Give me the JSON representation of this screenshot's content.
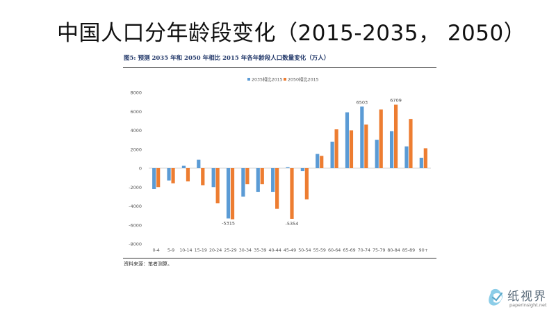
{
  "slide": {
    "title": "中国人口分年龄段变化（2015-2035， 2050）"
  },
  "figure": {
    "caption": "图5:   预测 2035 年和 2050 年相比 2015 年各年龄段人口数量变化（万人）",
    "source": "资料来源：笔者测算。"
  },
  "watermark": {
    "name": "纸视界",
    "url": "paperinsight.net"
  },
  "colors": {
    "series_2035": "#5b9bd5",
    "series_2050": "#ed7d31"
  },
  "chart_data": {
    "type": "bar",
    "title": "",
    "xlabel": "",
    "ylabel": "",
    "ylim": [
      -8000,
      8000
    ],
    "yticks": [
      8000,
      6000,
      4000,
      2000,
      0,
      -2000,
      -4000,
      -6000,
      -8000
    ],
    "grid": false,
    "legend_position": "top-center",
    "categories": [
      "0-4",
      "5-9",
      "10-14",
      "15-19",
      "20-24",
      "25-29",
      "30-34",
      "35-39",
      "40-44",
      "45-49",
      "50-54",
      "55-59",
      "60-64",
      "65-69",
      "70-74",
      "75-79",
      "80-84",
      "85-89",
      "90+"
    ],
    "series": [
      {
        "name": "2035相比2015",
        "values": [
          -2200,
          -1300,
          250,
          900,
          -2000,
          -5315,
          -3000,
          -2500,
          -2500,
          100,
          -300,
          1500,
          2800,
          5900,
          6503,
          3000,
          3900,
          2300,
          1100
        ]
      },
      {
        "name": "2050相比2015",
        "values": [
          -2000,
          -1600,
          -1400,
          -1800,
          -3700,
          -5400,
          -1700,
          -1700,
          -4300,
          -5354,
          -3300,
          1300,
          4100,
          4000,
          4600,
          6200,
          6709,
          5200,
          2100
        ]
      }
    ],
    "data_labels": [
      {
        "series": 0,
        "index": 5,
        "text": "-5315"
      },
      {
        "series": 1,
        "index": 9,
        "text": "-5354"
      },
      {
        "series": 0,
        "index": 14,
        "text": "6503"
      },
      {
        "series": 1,
        "index": 16,
        "text": "6709"
      }
    ]
  }
}
